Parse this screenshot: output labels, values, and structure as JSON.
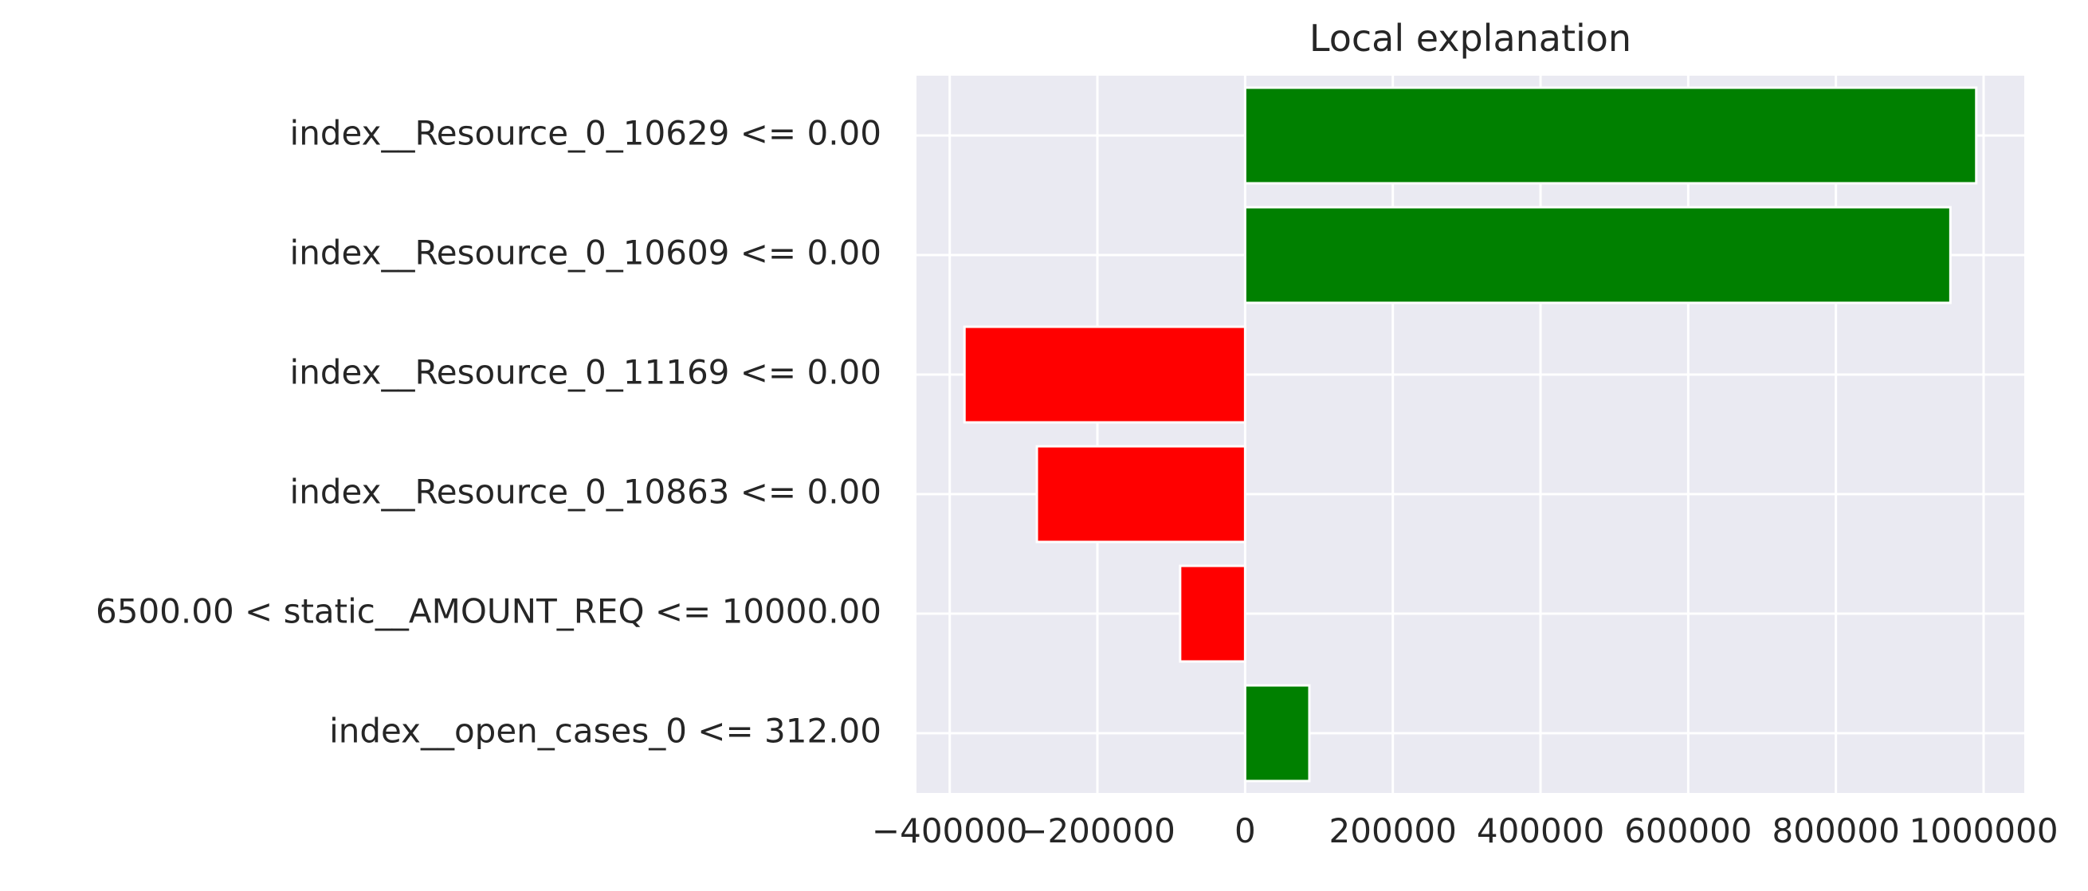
{
  "chart_data": {
    "type": "bar",
    "orientation": "horizontal",
    "title": "Local explanation",
    "xlabel": "",
    "ylabel": "",
    "categories": [
      "index__Resource_0_10629 <= 0.00",
      "index__Resource_0_10609 <= 0.00",
      "index__Resource_0_11169 <= 0.00",
      "index__Resource_0_10863 <= 0.00",
      "6500.00 < static__AMOUNT_REQ <= 10000.00",
      "index__open_cases_0 <= 312.00"
    ],
    "values": [
      990000,
      955000,
      -380000,
      -282000,
      -88000,
      87000
    ],
    "xlim": [
      -445000,
      1055000
    ],
    "xticks": [
      -400000,
      -200000,
      0,
      200000,
      400000,
      600000,
      800000,
      1000000
    ],
    "xtick_labels": [
      "−400000",
      "−200000",
      "0",
      "200000",
      "400000",
      "600000",
      "800000",
      "1000000"
    ],
    "grid": true,
    "colors": {
      "positive": "#008000",
      "negative": "#ff0000",
      "background": "#eaeaf2",
      "grid": "#ffffff"
    }
  }
}
